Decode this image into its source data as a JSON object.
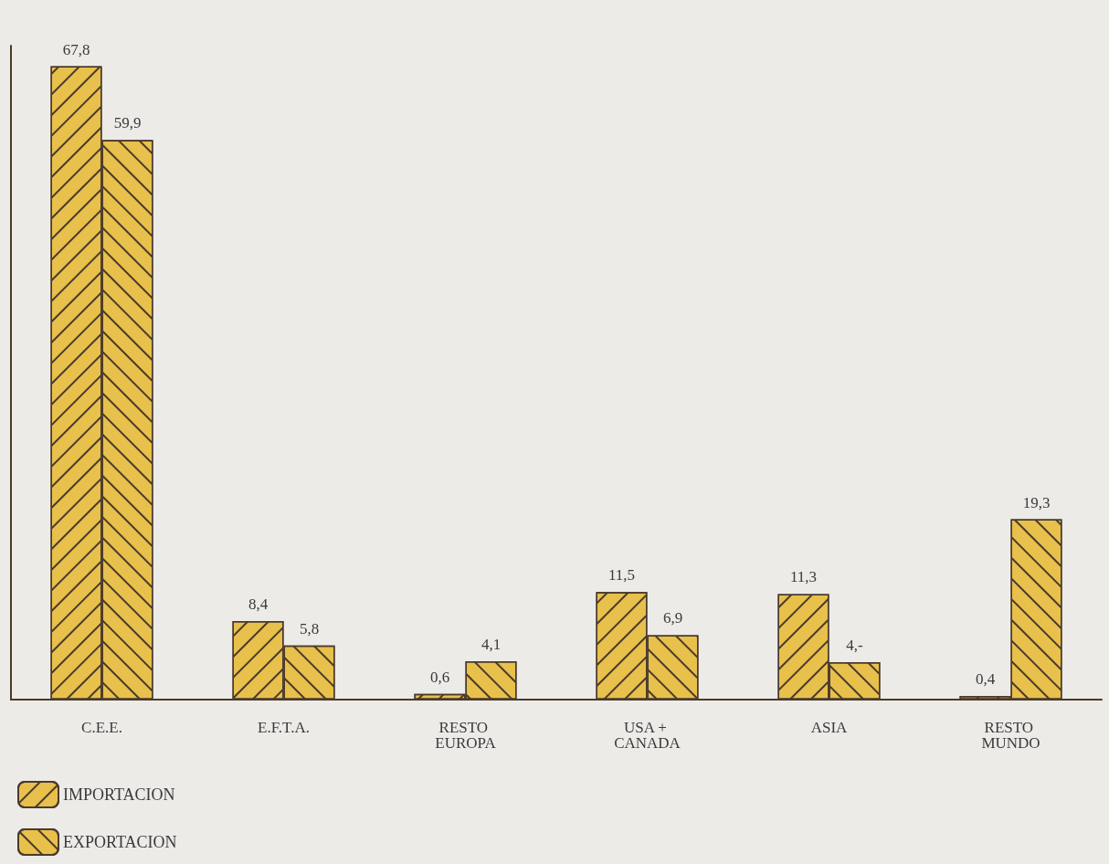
{
  "chart_data": {
    "type": "bar",
    "categories": [
      "C.E.E.",
      "E.F.T.A.",
      "RESTO EUROPA",
      "USA + CANADA",
      "ASIA",
      "RESTO MUNDO"
    ],
    "series": [
      {
        "name": "IMPORTACION",
        "color": "#e8c04c",
        "values": [
          67.8,
          8.4,
          0.6,
          11.5,
          11.3,
          0.4
        ],
        "value_labels": [
          "67,8",
          "8,4",
          "0,6",
          "11,5",
          "11,3",
          "0,4"
        ]
      },
      {
        "name": "EXPORTACION",
        "color": "#e8c04c",
        "values": [
          59.9,
          5.8,
          4.1,
          6.9,
          4,
          19.3
        ],
        "value_labels": [
          "59,9",
          "5,8",
          "4,1",
          "6,9",
          "4,-",
          "19,3"
        ]
      }
    ],
    "legend": "bottom left",
    "grid": false,
    "tick_labels": "x"
  }
}
